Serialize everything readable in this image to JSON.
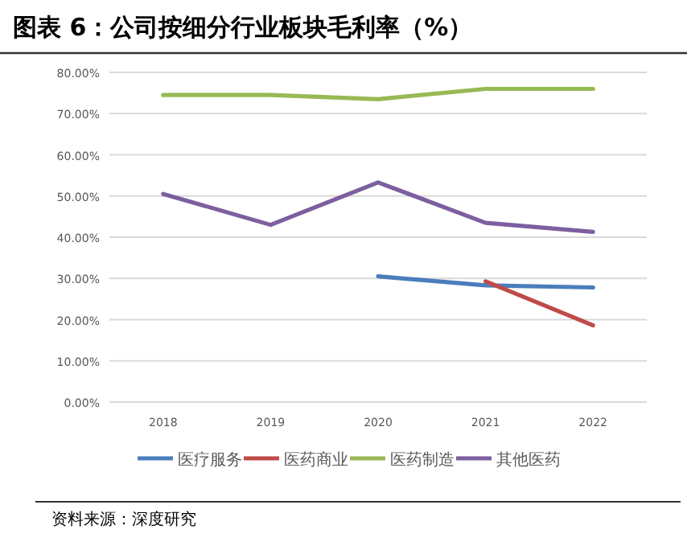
{
  "chart_data": {
    "type": "line",
    "title": "图表 6：公司按细分行业板块毛利率（%）",
    "categories": [
      "2018",
      "2019",
      "2020",
      "2021",
      "2022"
    ],
    "series": [
      {
        "name": "医疗服务",
        "color": "#4a7ebb",
        "values": [
          null,
          null,
          30.5,
          28.3,
          27.8
        ]
      },
      {
        "name": "医药商业",
        "color": "#be4b48",
        "values": [
          null,
          null,
          null,
          29.3,
          18.6
        ]
      },
      {
        "name": "医药制造",
        "color": "#98b954",
        "values": [
          74.5,
          74.5,
          73.5,
          76,
          76
        ]
      },
      {
        "name": "其他医药",
        "color": "#7d5fa0",
        "values": [
          50.5,
          43,
          53.3,
          43.5,
          41.3
        ]
      }
    ],
    "ylim": [
      0,
      80
    ],
    "yticks": [
      {
        "value": 0,
        "label": "0.00%"
      },
      {
        "value": 10,
        "label": "10.00%"
      },
      {
        "value": 20,
        "label": "20.00%"
      },
      {
        "value": 30,
        "label": "30.00%"
      },
      {
        "value": 40,
        "label": "40.00%"
      },
      {
        "value": 50,
        "label": "50.00%"
      },
      {
        "value": 60,
        "label": "60.00%"
      },
      {
        "value": 70,
        "label": "70.00%"
      },
      {
        "value": 80,
        "label": "80.00%"
      }
    ],
    "grid": "y",
    "legend": "bottom",
    "marker": "none",
    "line_style": "solid",
    "annotations": [
      "资料来源：深度研究"
    ]
  }
}
